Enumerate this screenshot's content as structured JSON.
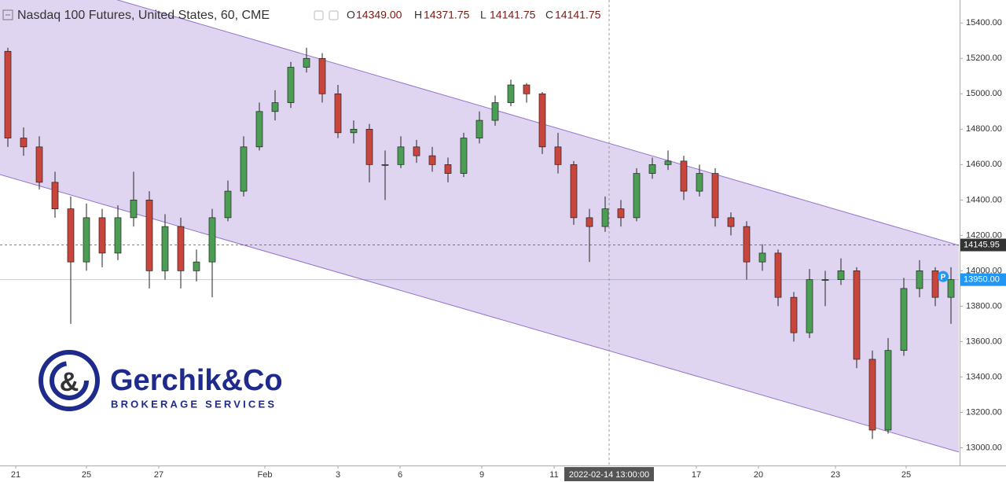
{
  "chart_data": {
    "type": "candlestick",
    "title": "Nasdaq 100 Futures, United States, 60, CME",
    "ohlc": [
      {
        "name": "O",
        "text": "14349.00"
      },
      {
        "name": "H",
        "text": "14371.75"
      },
      {
        "name": "L",
        "text": "14141.75"
      },
      {
        "name": "C",
        "text": "14141.75"
      }
    ],
    "up_color": "#4a9d52",
    "down_color": "#c9443a",
    "channel_color": "#9575cd",
    "channel": {
      "upper": [
        15724,
        14144
      ],
      "lower": [
        14544,
        12976
      ]
    },
    "xlim": [
      -0.5,
      60.5
    ],
    "ylim": [
      12900,
      15530
    ],
    "x": [
      0,
      1,
      2,
      3,
      4,
      5,
      6,
      7,
      8,
      9,
      10,
      11,
      12,
      13,
      14,
      15,
      16,
      17,
      18,
      19,
      20,
      21,
      22,
      23,
      24,
      25,
      26,
      27,
      28,
      29,
      30,
      31,
      32,
      33,
      34,
      35,
      36,
      37,
      38,
      39,
      40,
      41,
      42,
      43,
      44,
      45,
      46,
      47,
      48,
      49,
      50,
      51,
      52,
      53,
      54,
      55,
      56,
      57,
      58,
      59,
      60
    ],
    "open": [
      15240,
      14750,
      14700,
      14500,
      14350,
      14050,
      14300,
      14100,
      14300,
      14400,
      14000,
      14250,
      14000,
      14050,
      14300,
      14450,
      14700,
      14900,
      14950,
      15150,
      15200,
      15000,
      14780,
      14800,
      14600,
      14600,
      14700,
      14650,
      14600,
      14550,
      14750,
      14850,
      14950,
      15050,
      15000,
      14700,
      14600,
      14300,
      14250,
      14350,
      14300,
      14550,
      14600,
      14620,
      14450,
      14550,
      14300,
      14250,
      14050,
      14100,
      13850,
      13650,
      13950,
      13950,
      14000,
      13500,
      13100,
      13550,
      13900,
      14000,
      13850
    ],
    "high": [
      15260,
      14810,
      14760,
      14560,
      14420,
      14380,
      14350,
      14370,
      14560,
      14450,
      14320,
      14300,
      14120,
      14350,
      14510,
      14760,
      14950,
      15020,
      15180,
      15260,
      15230,
      15050,
      14850,
      14830,
      14680,
      14760,
      14740,
      14700,
      14640,
      14780,
      14900,
      14990,
      15080,
      15060,
      15010,
      14780,
      14620,
      14350,
      14420,
      14400,
      14580,
      14640,
      14680,
      14650,
      14600,
      14580,
      14330,
      14280,
      14150,
      14120,
      13880,
      14010,
      14000,
      14070,
      14020,
      13550,
      13620,
      13960,
      14060,
      14020,
      14020
    ],
    "low": [
      14700,
      14650,
      14460,
      14300,
      13700,
      14000,
      14020,
      14060,
      14250,
      13900,
      13950,
      13900,
      13940,
      13850,
      14280,
      14420,
      14680,
      14850,
      14920,
      15120,
      14950,
      14750,
      14720,
      14500,
      14400,
      14580,
      14610,
      14560,
      14500,
      14530,
      14720,
      14820,
      14930,
      14950,
      14660,
      14550,
      14260,
      14050,
      14220,
      14250,
      14280,
      14520,
      14570,
      14400,
      14420,
      14250,
      14200,
      13950,
      14000,
      13800,
      13600,
      13620,
      13800,
      13920,
      13450,
      13050,
      13080,
      13520,
      13850,
      13800,
      13700
    ],
    "close": [
      14750,
      14700,
      14500,
      14350,
      14050,
      14300,
      14100,
      14300,
      14400,
      14000,
      14250,
      14000,
      14050,
      14300,
      14450,
      14700,
      14900,
      14950,
      15150,
      15200,
      15000,
      14780,
      14800,
      14600,
      14600,
      14700,
      14650,
      14600,
      14550,
      14750,
      14850,
      14950,
      15050,
      15000,
      14700,
      14600,
      14300,
      14250,
      14350,
      14300,
      14550,
      14600,
      14620,
      14450,
      14550,
      14300,
      14250,
      14050,
      14100,
      13850,
      13650,
      13950,
      13950,
      14000,
      13500,
      13100,
      13550,
      13900,
      14000,
      13850,
      13950
    ],
    "xticks": [
      {
        "value": 0.5,
        "label": "21"
      },
      {
        "value": 5,
        "label": "25"
      },
      {
        "value": 9.6,
        "label": "27"
      },
      {
        "value": 16.35,
        "label": "Feb"
      },
      {
        "value": 21,
        "label": "3"
      },
      {
        "value": 24.95,
        "label": "6"
      },
      {
        "value": 30.15,
        "label": "9"
      },
      {
        "value": 34.75,
        "label": "11"
      },
      {
        "value": 43.8,
        "label": "17"
      },
      {
        "value": 47.75,
        "label": "20"
      },
      {
        "value": 52.65,
        "label": "23"
      },
      {
        "value": 57.15,
        "label": "25"
      }
    ],
    "yticks": [
      {
        "value": 13000,
        "label": "13000.00"
      },
      {
        "value": 13200,
        "label": "13200.00"
      },
      {
        "value": 13400,
        "label": "13400.00"
      },
      {
        "value": 13600,
        "label": "13600.00"
      },
      {
        "value": 13800,
        "label": "13800.00"
      },
      {
        "value": 14000,
        "label": "14000.00"
      },
      {
        "value": 14200,
        "label": "14200.00"
      },
      {
        "value": 14400,
        "label": "14400.00"
      },
      {
        "value": 14600,
        "label": "14600.00"
      },
      {
        "value": 14800,
        "label": "14800.00"
      },
      {
        "value": 15000,
        "label": "15000.00"
      },
      {
        "value": 15200,
        "label": "15200.00"
      },
      {
        "value": 15400,
        "label": "15400.00"
      }
    ],
    "price_lines": [
      {
        "value": 14145.95,
        "label": "14145.95",
        "color": "#333333",
        "style": "dashed"
      },
      {
        "value": 13950,
        "label": "13950.00",
        "color": "#2196f3",
        "style": "solid"
      }
    ],
    "crosshair": {
      "x": 38.25,
      "label": "2022-02-14 13:00:00"
    },
    "badge": "P"
  },
  "logo": {
    "name": "Gerchik&Co",
    "tagline": "BROKERAGE SERVICES"
  }
}
